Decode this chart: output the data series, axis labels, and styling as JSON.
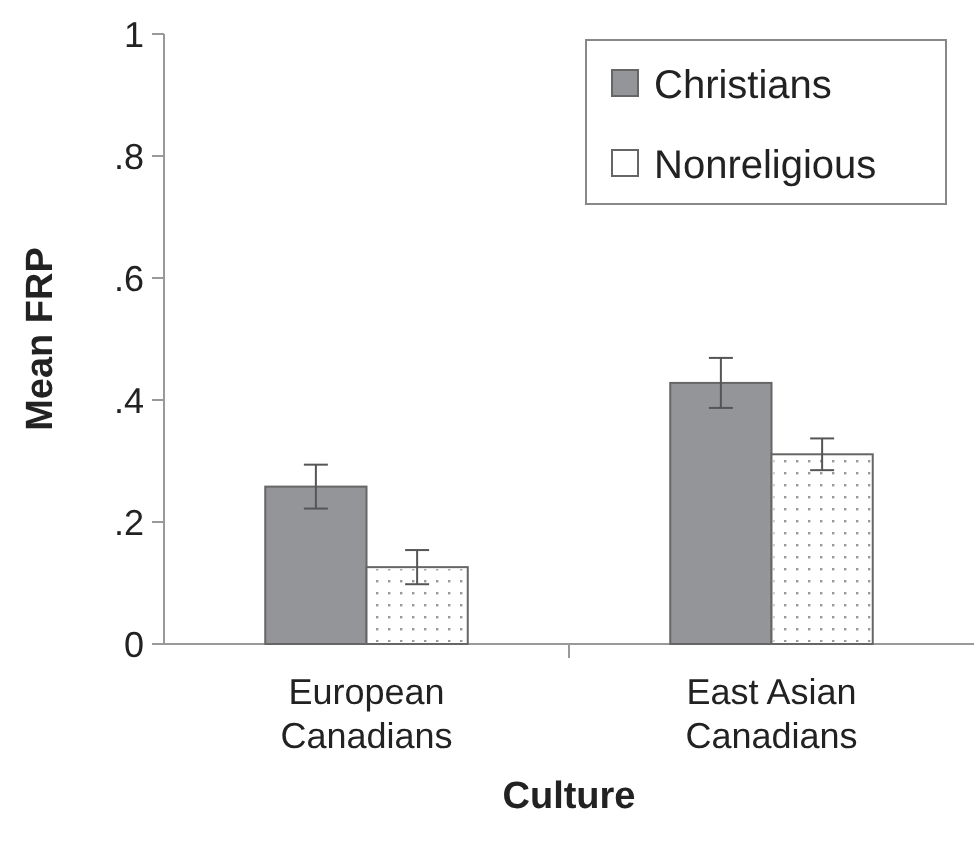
{
  "chart_data": {
    "type": "bar",
    "xlabel": "Culture",
    "ylabel": "Mean FRP",
    "categories": [
      "European Canadians",
      "East Asian Canadians"
    ],
    "series": [
      {
        "name": "Christians",
        "color": "#939598",
        "values": [
          0.258,
          0.428
        ],
        "errors": [
          0.036,
          0.041
        ]
      },
      {
        "name": "Nonreligious",
        "color": "#ffffff",
        "values": [
          0.126,
          0.311
        ],
        "errors": [
          0.028,
          0.026
        ]
      }
    ],
    "ylim": [
      0,
      1
    ],
    "yticks": [
      0,
      {
        "value": 0.2,
        "label": ".2"
      },
      {
        "value": 0.4,
        "label": ".4"
      },
      {
        "value": 0.6,
        "label": ".6"
      },
      {
        "value": 0.8,
        "label": ".8"
      },
      1
    ],
    "legend": "top right",
    "grid": false
  }
}
